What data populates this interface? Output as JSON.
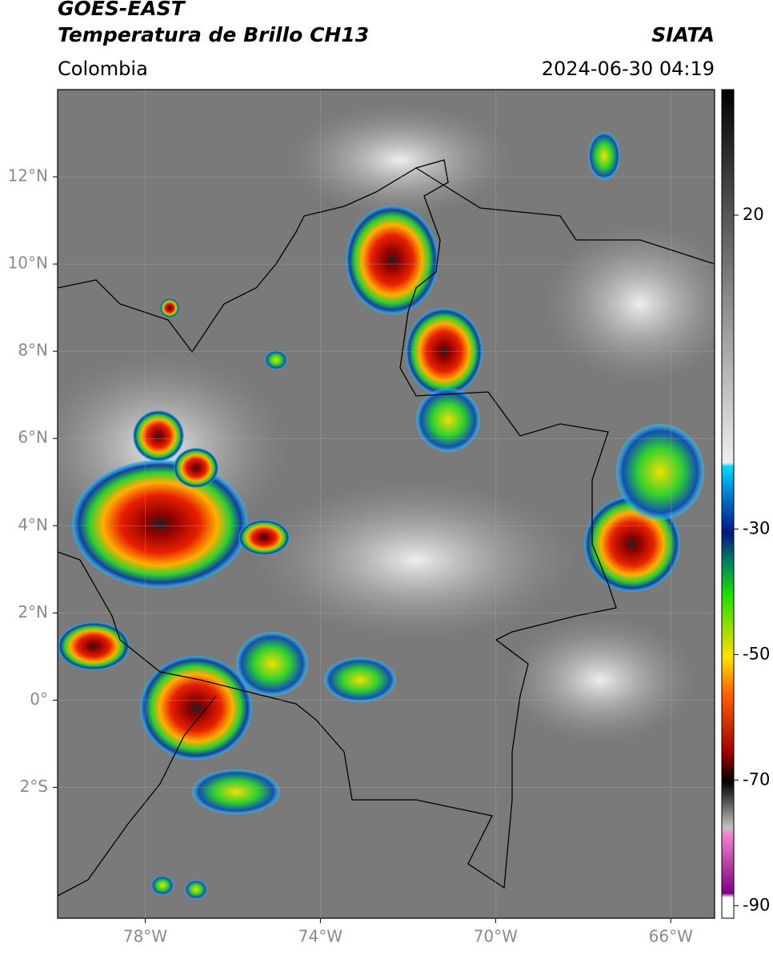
{
  "header": {
    "title": "GOES-EAST",
    "subtitle": "Temperatura de Brillo CH13",
    "region": "Colombia",
    "source": "SIATA",
    "datetime": "2024-06-30 04:19"
  },
  "map": {
    "xlim": [
      -80,
      -65
    ],
    "ylim": [
      -5,
      14
    ],
    "yticks": [
      {
        "value": 12,
        "label": "12°N"
      },
      {
        "value": 10,
        "label": "10°N"
      },
      {
        "value": 8,
        "label": "8°N"
      },
      {
        "value": 6,
        "label": "6°N"
      },
      {
        "value": 4,
        "label": "4°N"
      },
      {
        "value": 2,
        "label": "2°N"
      },
      {
        "value": 0,
        "label": "0°"
      },
      {
        "value": -2,
        "label": "2°S"
      }
    ],
    "xticks": [
      {
        "value": -78,
        "label": "78°W"
      },
      {
        "value": -74,
        "label": "74°W"
      },
      {
        "value": -70,
        "label": "70°W"
      },
      {
        "value": -66,
        "label": "66°W"
      }
    ],
    "grid": true
  },
  "colorbar": {
    "lim": [
      -92,
      40
    ],
    "ticks": [
      20,
      -30,
      -50,
      -70,
      -90
    ]
  }
}
